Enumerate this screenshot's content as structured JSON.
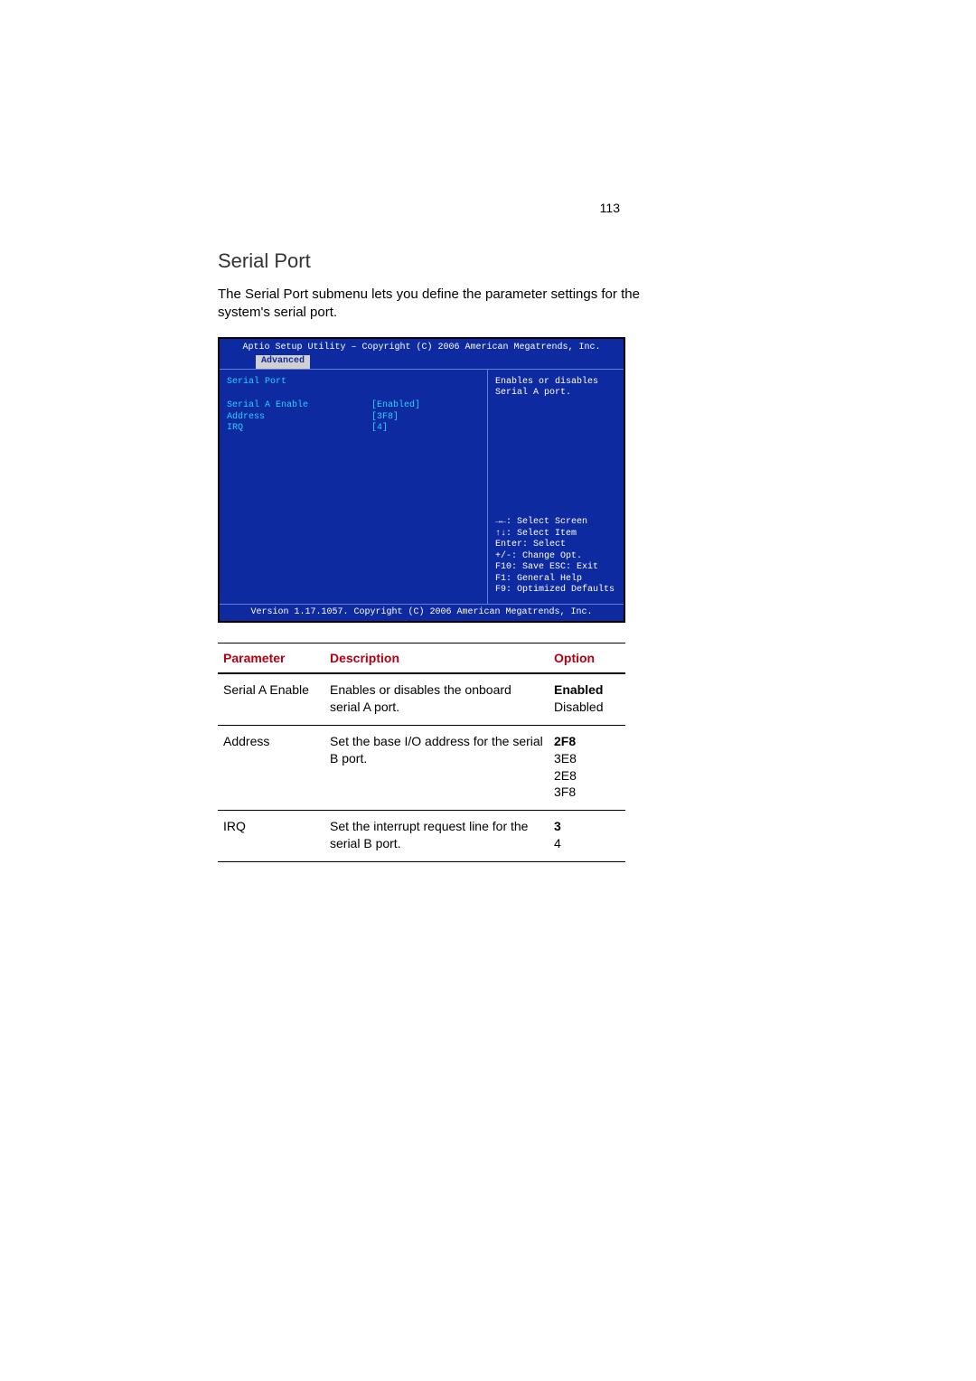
{
  "page": {
    "number": "113"
  },
  "heading": "Serial Port",
  "intro": "The Serial Port submenu lets you define the parameter settings for the system's serial port.",
  "bios": {
    "title": "Aptio Setup Utility – Copyright (C) 2006 American Megatrends, Inc.",
    "tab": "Advanced",
    "section_title": "Serial Port",
    "items": [
      {
        "label": "Serial A Enable",
        "value": "[Enabled]"
      },
      {
        "label": "Address",
        "value": "[3F8]"
      },
      {
        "label": "IRQ",
        "value": "[4]"
      }
    ],
    "help": "Enables or disables Serial A port.",
    "nav": [
      "→←: Select Screen",
      "↑↓: Select Item",
      "Enter: Select",
      "+/-: Change Opt.",
      "F10: Save  ESC: Exit",
      "F1: General Help",
      "F9: Optimized Defaults"
    ],
    "footer": "Version 1.17.1057. Copyright (C) 2006 American Megatrends, Inc.",
    "colors": {
      "background": "#0e2aa0",
      "highlight_text": "#28d0ff",
      "text": "#ffffff",
      "tab_bg": "#d0d0d0",
      "tab_text": "#0e2aa0",
      "border": "#6a7cd6"
    }
  },
  "table": {
    "headers": {
      "parameter": "Parameter",
      "description": "Description",
      "option": "Option"
    },
    "header_color": "#b40014",
    "rows": [
      {
        "parameter": "Serial A Enable",
        "description": "Enables or disables the onboard serial A port.",
        "options": [
          {
            "text": "Enabled",
            "bold": true
          },
          {
            "text": "Disabled",
            "bold": false
          }
        ]
      },
      {
        "parameter": "Address",
        "description": "Set the base I/O address for the serial B port.",
        "options": [
          {
            "text": "2F8",
            "bold": true
          },
          {
            "text": "3E8",
            "bold": false
          },
          {
            "text": "2E8",
            "bold": false
          },
          {
            "text": "3F8",
            "bold": false
          }
        ]
      },
      {
        "parameter": "IRQ",
        "description": "Set the interrupt request line for the serial B port.",
        "options": [
          {
            "text": "3",
            "bold": true
          },
          {
            "text": "4",
            "bold": false
          }
        ]
      }
    ]
  }
}
